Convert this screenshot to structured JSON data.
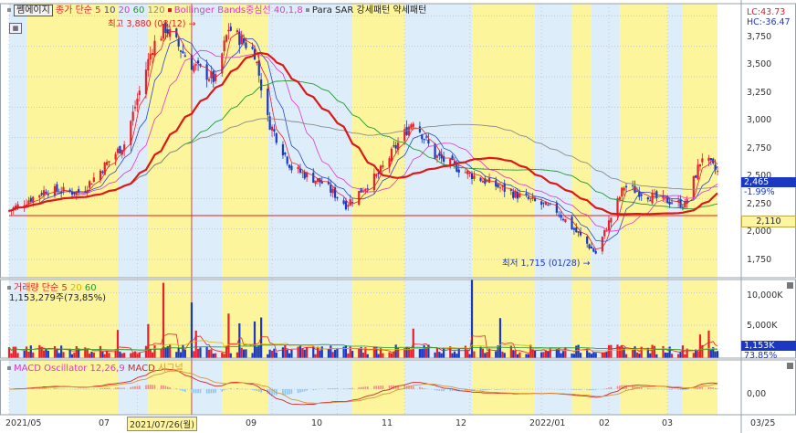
{
  "chart_data": [
    {
      "type": "candlestick",
      "legend": {
        "name": "쎔에이지",
        "ma_label": "종가 단순",
        "ma_periods": [
          "5",
          "10",
          "20",
          "60",
          "120"
        ],
        "bollinger_label": "Bollinger Bands중심선 40,1,8",
        "sar_label": "Para SAR",
        "sar_strong": "강세패턴",
        "sar_weak": "약세패턴"
      },
      "yticks": [
        "3,750",
        "3,500",
        "3,250",
        "3,000",
        "2,750",
        "2,500",
        "2,250",
        "2,000",
        "1,750"
      ],
      "ylim": [
        1600,
        3850
      ],
      "hc_label": "HC:-36.47",
      "lc_label": "LC:43.73",
      "high_annotation": "최고 3,880 (08/12)",
      "low_annotation": "최저 1,715 (01/28)",
      "last_price": "2,465",
      "last_change": "-1.99%",
      "ref_line": "2,110",
      "ref_value": 2110,
      "x_start": "2021-05-03",
      "x_end": "2022-03-25",
      "series_anchors": [
        {
          "date": "2021-05-03",
          "close": 2150
        },
        {
          "date": "2021-05-20",
          "close": 2320
        },
        {
          "date": "2021-06-05",
          "close": 2300
        },
        {
          "date": "2021-06-25",
          "close": 2700
        },
        {
          "date": "2021-07-08",
          "close": 3500
        },
        {
          "date": "2021-07-14",
          "close": 3650
        },
        {
          "date": "2021-07-26",
          "close": 3350
        },
        {
          "date": "2021-08-06",
          "close": 3220
        },
        {
          "date": "2021-08-12",
          "close": 3650
        },
        {
          "date": "2021-08-24",
          "close": 3450
        },
        {
          "date": "2021-08-30",
          "close": 2900
        },
        {
          "date": "2021-09-10",
          "close": 2500
        },
        {
          "date": "2021-09-24",
          "close": 2380
        },
        {
          "date": "2021-10-05",
          "close": 2200
        },
        {
          "date": "2021-10-20",
          "close": 2450
        },
        {
          "date": "2021-11-05",
          "close": 2900
        },
        {
          "date": "2021-11-15",
          "close": 2600
        },
        {
          "date": "2021-12-01",
          "close": 2450
        },
        {
          "date": "2021-12-20",
          "close": 2300
        },
        {
          "date": "2022-01-10",
          "close": 2150
        },
        {
          "date": "2022-01-28",
          "close": 1800
        },
        {
          "date": "2022-02-10",
          "close": 2350
        },
        {
          "date": "2022-02-25",
          "close": 2250
        },
        {
          "date": "2022-03-10",
          "close": 2200
        },
        {
          "date": "2022-03-18",
          "close": 2600
        },
        {
          "date": "2022-03-25",
          "close": 2465
        }
      ]
    },
    {
      "type": "bar",
      "legend": {
        "name": "거래량",
        "ma_label": "단순",
        "ma_periods": [
          "5",
          "20",
          "60"
        ]
      },
      "info": "1,153,279주(73,85%)",
      "yticks": [
        "10,000K",
        "5,000K"
      ],
      "ylim": [
        0,
        12000
      ],
      "last_value": "1,153K",
      "last_pct": "73.85%",
      "typical_volume_k": 1150,
      "spikes": [
        {
          "date": "2021-06-22",
          "value_k": 4300
        },
        {
          "date": "2021-07-06",
          "value_k": 5200
        },
        {
          "date": "2021-07-13",
          "value_k": 11500
        },
        {
          "date": "2021-07-26",
          "value_k": 8500
        },
        {
          "date": "2021-07-28",
          "value_k": 4200
        },
        {
          "date": "2021-08-12",
          "value_k": 6800
        },
        {
          "date": "2021-08-17",
          "value_k": 5300
        },
        {
          "date": "2021-08-24",
          "value_k": 5600
        },
        {
          "date": "2021-08-27",
          "value_k": 6200
        },
        {
          "date": "2021-11-05",
          "value_k": 4500
        },
        {
          "date": "2021-12-02",
          "value_k": 12000
        },
        {
          "date": "2021-12-15",
          "value_k": 6100
        },
        {
          "date": "2022-03-17",
          "value_k": 3600
        },
        {
          "date": "2022-03-21",
          "value_k": 4200
        }
      ]
    },
    {
      "type": "line",
      "legend": {
        "name": "MACD Oscillator 12,26,9",
        "macd": "MACD",
        "signal": "시그널"
      },
      "yticks": [
        "0,00"
      ]
    }
  ],
  "x_axis": {
    "labels": [
      {
        "text": "2021/05",
        "date": "2021-05-03"
      },
      {
        "text": "07",
        "date": "2021-07-01"
      },
      {
        "text": "2021/07/26(월)",
        "date": "2021-07-26"
      },
      {
        "text": "09",
        "date": "2021-09-01"
      },
      {
        "text": "10",
        "date": "2021-10-01"
      },
      {
        "text": "11",
        "date": "2021-11-01"
      },
      {
        "text": "12",
        "date": "2021-12-01"
      },
      {
        "text": "2022/01",
        "date": "2022-01-03"
      },
      {
        "text": "02",
        "date": "2022-02-03"
      },
      {
        "text": "03",
        "date": "2022-03-02"
      }
    ],
    "right_label": "03/25"
  },
  "bands": [
    {
      "from": "2021-05-03",
      "to": "2021-05-11",
      "color": "#ddeefa"
    },
    {
      "from": "2021-05-11",
      "to": "2021-06-22",
      "color": "#fcf59c"
    },
    {
      "from": "2021-06-22",
      "to": "2021-07-06",
      "color": "#ddeefa"
    },
    {
      "from": "2021-07-06",
      "to": "2021-07-26",
      "color": "#fcf59c"
    },
    {
      "from": "2021-07-26",
      "to": "2021-08-09",
      "color": "#ddeefa"
    },
    {
      "from": "2021-08-09",
      "to": "2021-08-30",
      "color": "#fcf59c"
    },
    {
      "from": "2021-08-30",
      "to": "2021-10-08",
      "color": "#ddeefa"
    },
    {
      "from": "2021-10-08",
      "to": "2021-11-01",
      "color": "#fcf59c"
    },
    {
      "from": "2021-11-01",
      "to": "2021-12-02",
      "color": "#ddeefa"
    },
    {
      "from": "2021-12-02",
      "to": "2021-12-31",
      "color": "#fcf59c"
    },
    {
      "from": "2021-12-31",
      "to": "2022-01-17",
      "color": "#ddeefa"
    },
    {
      "from": "2022-01-17",
      "to": "2022-01-26",
      "color": "#fcf59c"
    },
    {
      "from": "2022-01-26",
      "to": "2022-02-08",
      "color": "#ddeefa"
    },
    {
      "from": "2022-02-08",
      "to": "2022-03-02",
      "color": "#fcf59c"
    },
    {
      "from": "2022-03-02",
      "to": "2022-03-09",
      "color": "#ddeefa"
    },
    {
      "from": "2022-03-09",
      "to": "2022-03-25",
      "color": "#fcf59c"
    }
  ],
  "colors": {
    "up": "#e8202b",
    "down": "#1a38c2",
    "ma5": "#e8202b",
    "ma10": "#2a47c8",
    "ma20": "#e234c8",
    "ma60": "#1d9a2e",
    "ma120": "#8a8a8a",
    "bollinger": "#dd1818",
    "ref": "#e02020",
    "grid": "#c4c9d1",
    "macd": "#d02828",
    "signal": "#d89632",
    "osc_up": "#f08a8a",
    "osc_down": "#8fc4ee"
  }
}
